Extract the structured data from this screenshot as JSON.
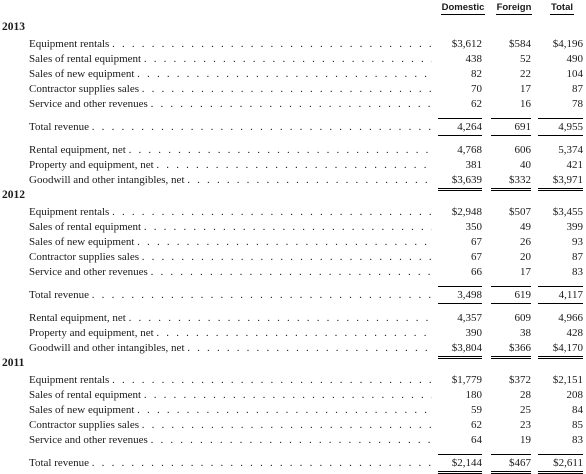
{
  "columns": [
    "Domestic",
    "Foreign",
    "Total"
  ],
  "sections": [
    {
      "year": "2013",
      "rows": [
        {
          "label": "Equipment rentals",
          "domestic": "$3,612",
          "foreign": "$584",
          "total": "$4,196"
        },
        {
          "label": "Sales of rental equipment",
          "domestic": "438",
          "foreign": "52",
          "total": "490"
        },
        {
          "label": "Sales of new equipment",
          "domestic": "82",
          "foreign": "22",
          "total": "104"
        },
        {
          "label": "Contractor supplies sales",
          "domestic": "70",
          "foreign": "17",
          "total": "87"
        },
        {
          "label": "Service and other revenues",
          "domestic": "62",
          "foreign": "16",
          "total": "78"
        },
        {
          "label": "Total revenue",
          "domestic": "4,264",
          "foreign": "691",
          "total": "4,955"
        },
        {
          "label": "Rental equipment, net",
          "domestic": "4,768",
          "foreign": "606",
          "total": "5,374"
        },
        {
          "label": "Property and equipment, net",
          "domestic": "381",
          "foreign": "40",
          "total": "421"
        },
        {
          "label": "Goodwill and other intangibles, net",
          "domestic": "$3,639",
          "foreign": "$332",
          "total": "$3,971"
        }
      ]
    },
    {
      "year": "2012",
      "rows": [
        {
          "label": "Equipment rentals",
          "domestic": "$2,948",
          "foreign": "$507",
          "total": "$3,455"
        },
        {
          "label": "Sales of rental equipment",
          "domestic": "350",
          "foreign": "49",
          "total": "399"
        },
        {
          "label": "Sales of new equipment",
          "domestic": "67",
          "foreign": "26",
          "total": "93"
        },
        {
          "label": "Contractor supplies sales",
          "domestic": "67",
          "foreign": "20",
          "total": "87"
        },
        {
          "label": "Service and other revenues",
          "domestic": "66",
          "foreign": "17",
          "total": "83"
        },
        {
          "label": "Total revenue",
          "domestic": "3,498",
          "foreign": "619",
          "total": "4,117"
        },
        {
          "label": "Rental equipment, net",
          "domestic": "4,357",
          "foreign": "609",
          "total": "4,966"
        },
        {
          "label": "Property and equipment, net",
          "domestic": "390",
          "foreign": "38",
          "total": "428"
        },
        {
          "label": "Goodwill and other intangibles, net",
          "domestic": "$3,804",
          "foreign": "$366",
          "total": "$4,170"
        }
      ]
    },
    {
      "year": "2011",
      "rows": [
        {
          "label": "Equipment rentals",
          "domestic": "$1,779",
          "foreign": "$372",
          "total": "$2,151"
        },
        {
          "label": "Sales of rental equipment",
          "domestic": "180",
          "foreign": "28",
          "total": "208"
        },
        {
          "label": "Sales of new equipment",
          "domestic": "59",
          "foreign": "25",
          "total": "84"
        },
        {
          "label": "Contractor supplies sales",
          "domestic": "62",
          "foreign": "23",
          "total": "85"
        },
        {
          "label": "Service and other revenues",
          "domestic": "64",
          "foreign": "19",
          "total": "83"
        },
        {
          "label": "Total revenue",
          "domestic": "$2,144",
          "foreign": "$467",
          "total": "$2,611"
        }
      ]
    }
  ]
}
